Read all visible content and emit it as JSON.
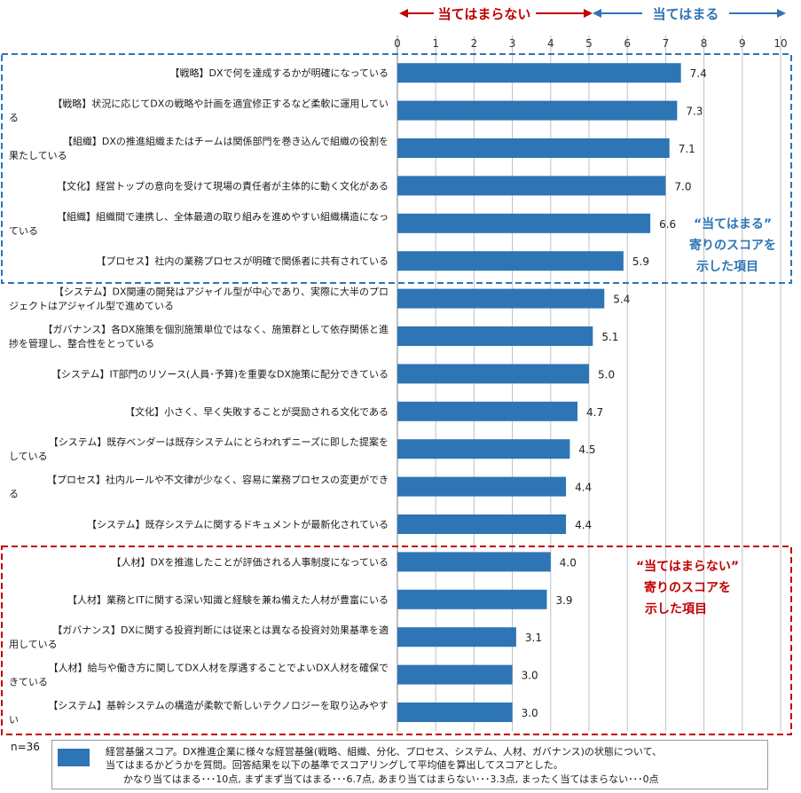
{
  "header": {
    "not_applicable": "当てはまらない",
    "applicable": "当てはまる"
  },
  "n_label": "n=36",
  "notes": {
    "blue": [
      "“当てはまる”",
      "寄りのスコアを",
      "示した項目"
    ],
    "red": [
      "“当てはまらない”",
      "寄りのスコアを",
      "示した項目"
    ]
  },
  "legend": {
    "line1": "経営基盤スコア。DX推進企業に様々な経営基盤(戦略、組織、分化、プロセス、システム、人材、ガバナンス)の状態について、",
    "line2": "当てはまるかどうかを質問。回答結果を以下の基準でスコアリングして平均値を算出してスコアとした。",
    "line3": "かなり当てはまる･･･10点, まずまず当てはまる･･･6.7点, あまり当てはまらない･･･3.3点, まったく当てはまらない･･･0点"
  },
  "colors": {
    "bar": "#2e75b6",
    "blue_group": "#2e75b6",
    "red_group": "#c00000",
    "grid": "#bfbfbf"
  },
  "chart_data": {
    "type": "bar",
    "orientation": "horizontal",
    "xlim": [
      0,
      10
    ],
    "xticks": [
      "0",
      "1",
      "2",
      "3",
      "4",
      "5",
      "6",
      "7",
      "8",
      "9",
      "10"
    ],
    "grid": true,
    "categories": [
      [
        "【戦略】DXで何を達成するかが明確になっている"
      ],
      [
        "【戦略】状況に応じてDXの戦略や計画を適宜修正するなど柔軟に運用してい",
        "る"
      ],
      [
        "【組織】DXの推進組織またはチームは関係部門を巻き込んで組織の役割を",
        "果たしている"
      ],
      [
        "【文化】経営トップの意向を受けて現場の責任者が主体的に動く文化がある"
      ],
      [
        "【組織】組織間で連携し、全体最適の取り組みを進めやすい組織構造になっ",
        "ている"
      ],
      [
        "【プロセス】社内の業務プロセスが明確で関係者に共有されている"
      ],
      [
        "【システム】DX関連の開発はアジャイル型が中心であり、実際に大半のプロ",
        "ジェクトはアジャイル型で進めている"
      ],
      [
        "【ガバナンス】各DX施策を個別施策単位ではなく、施策群として依存関係と進",
        "捗を管理し、整合性をとっている"
      ],
      [
        "【システム】IT部門のリソース(人員･予算)を重要なDX施策に配分できている"
      ],
      [
        "【文化】小さく、早く失敗することが奨励される文化である"
      ],
      [
        "【システム】既存ベンダーは既存システムにとらわれずニーズに即した提案を",
        "している"
      ],
      [
        "【プロセス】社内ルールや不文律が少なく、容易に業務プロセスの変更ができ",
        "る"
      ],
      [
        "【システム】既存システムに関するドキュメントが最新化されている"
      ],
      [
        "【人材】DXを推進したことが評価される人事制度になっている"
      ],
      [
        "【人材】業務とITに関する深い知識と経験を兼ね備えた人材が豊富にいる"
      ],
      [
        "【ガバナンス】DXに関する投資判断には従来とは異なる投資対効果基準を適",
        "用している"
      ],
      [
        "【人材】給与や働き方に関してDX人材を厚遇することでよいDX人材を確保で",
        "きている"
      ],
      [
        "【システム】基幹システムの構造が柔軟で新しいテクノロジーを取り込みやす",
        "い"
      ]
    ],
    "values": [
      7.4,
      7.3,
      7.1,
      7.0,
      6.6,
      5.9,
      5.4,
      5.1,
      5.0,
      4.7,
      4.5,
      4.4,
      4.4,
      4.0,
      3.9,
      3.1,
      3.0,
      3.0
    ],
    "value_labels": [
      "7.4",
      "7.3",
      "7.1",
      "7.0",
      "6.6",
      "5.9",
      "5.4",
      "5.1",
      "5.0",
      "4.7",
      "4.5",
      "4.4",
      "4.4",
      "4.0",
      "3.9",
      "3.1",
      "3.0",
      "3.0"
    ],
    "groups": {
      "applicable": [
        0,
        5
      ],
      "not_applicable": [
        13,
        17
      ]
    }
  }
}
